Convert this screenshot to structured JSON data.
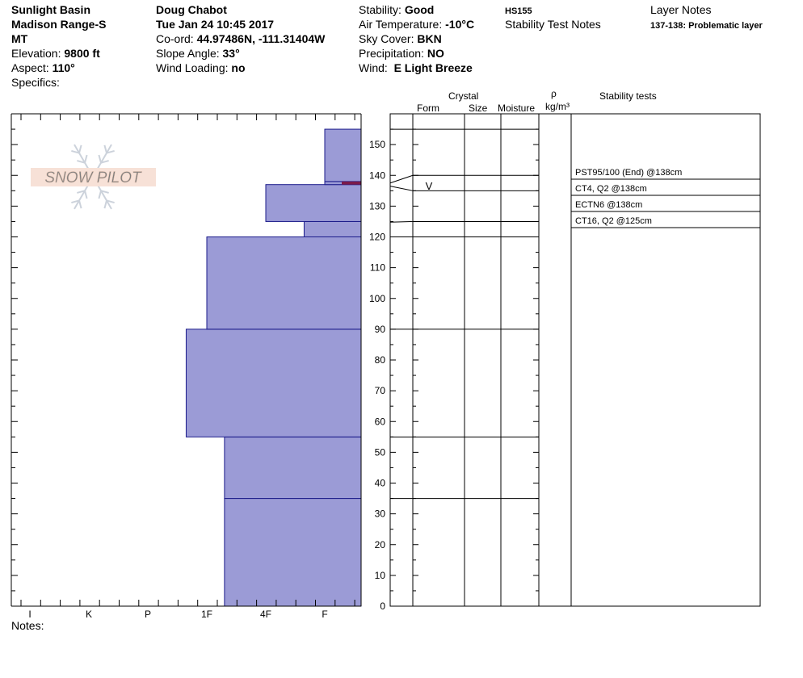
{
  "header": {
    "location": "Sunlight Basin",
    "range": "Madison Range-S",
    "state": "MT",
    "elevation_label": "Elevation:",
    "elevation_value": "9800 ft",
    "aspect_label": "Aspect:",
    "aspect_value": "110°",
    "specifics_label": "Specifics:",
    "observer": "Doug Chabot",
    "datetime": "Tue Jan 24 10:45 2017",
    "coord_label": "Co-ord:",
    "coord_value": "44.97486N, -111.31404W",
    "slope_label": "Slope Angle:",
    "slope_value": "33°",
    "wind_loading_label": "Wind Loading:",
    "wind_loading_value": "no",
    "stability_label": "Stability:",
    "stability_value": "Good",
    "air_temp_label": "Air Temperature:",
    "air_temp_value": "-10°C",
    "sky_label": "Sky Cover:",
    "sky_value": "BKN",
    "precip_label": "Precipitation:",
    "precip_value": "NO",
    "wind_label": "Wind:",
    "wind_value": "E Light Breeze",
    "hs": "HS155",
    "stability_notes_title": "Stability Test Notes",
    "layer_notes_title": "Layer Notes",
    "layer_note": "137-138: Problematic layer"
  },
  "logo_text": "SNOW PILOT",
  "notes_label": "Notes:",
  "table_headers": {
    "crystal": "Crystal",
    "form": "Form",
    "size": "Size",
    "moisture": "Moisture",
    "rho": "ρ",
    "density_unit": "kg/m³",
    "stability_tests": "Stability tests"
  },
  "colors": {
    "hardness_fill": "#9b9bd6",
    "hardness_stroke": "#1b1b8a",
    "problem_layer": "#7a1a4a"
  },
  "chart_data": {
    "type": "bar",
    "orientation": "horizontal-profile",
    "x_categories": [
      "I",
      "K",
      "P",
      "1F",
      "4F",
      "F"
    ],
    "y_ticks": [
      0,
      10,
      20,
      30,
      40,
      50,
      60,
      70,
      80,
      90,
      100,
      110,
      120,
      130,
      140,
      150
    ],
    "ylim": [
      0,
      160
    ],
    "y_unit": "cm",
    "layers": [
      {
        "bottom": 0,
        "top": 35,
        "hardness": "1F+"
      },
      {
        "bottom": 35,
        "top": 55,
        "hardness": "1F+"
      },
      {
        "bottom": 55,
        "top": 90,
        "hardness": "1F-"
      },
      {
        "bottom": 90,
        "top": 120,
        "hardness": "1F"
      },
      {
        "bottom": 120,
        "top": 125,
        "hardness": "F+"
      },
      {
        "bottom": 125,
        "top": 137,
        "hardness": "4F"
      },
      {
        "bottom": 137,
        "top": 138,
        "hardness": "F"
      },
      {
        "bottom": 138,
        "top": 155,
        "hardness": "F"
      }
    ],
    "hardness_scale": {
      "I": 0,
      "K": 1,
      "P": 2,
      "1F-": 2.65,
      "1F": 3,
      "1F+": 3.3,
      "4F": 4,
      "F+": 4.65,
      "F": 5,
      "end": 5.67
    },
    "problem_layer": {
      "bottom": 137,
      "top": 138
    },
    "crystal_form_symbol": {
      "height": 138,
      "symbol": "V"
    },
    "stability_tests": [
      {
        "text": "PST95/100 (End) @138cm",
        "height": 138
      },
      {
        "text": "CT4, Q2 @138cm",
        "height": 138
      },
      {
        "text": "ECTN6 @138cm",
        "height": 138
      },
      {
        "text": "CT16, Q2 @125cm",
        "height": 125
      }
    ]
  }
}
